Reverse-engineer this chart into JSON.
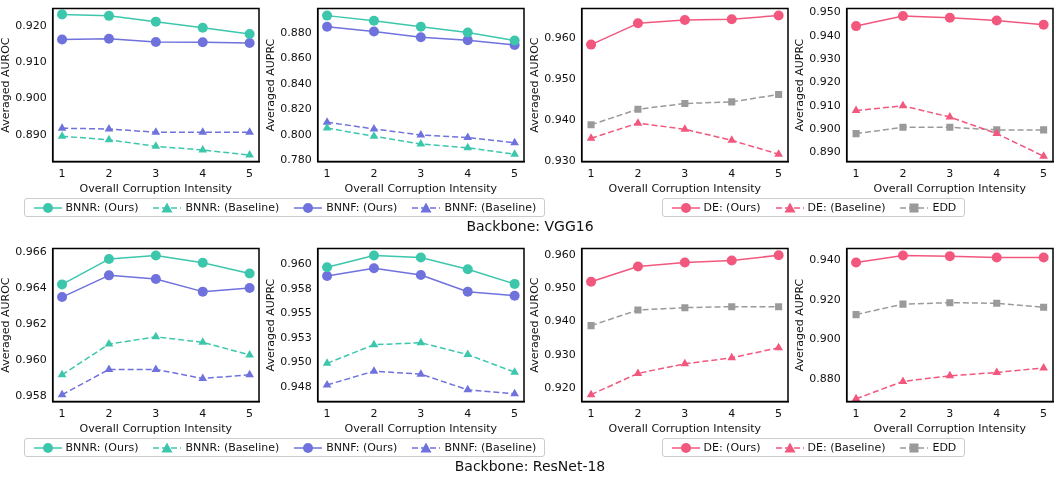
{
  "chart_data": [
    {
      "type": "line",
      "xlabel": "Overall Corruption Intensity",
      "ylabel": "Averaged AUROC",
      "x": [
        1,
        2,
        3,
        4,
        5
      ],
      "xlim": [
        0.8,
        5.2
      ],
      "xticks": [
        1,
        2,
        3,
        4,
        5
      ],
      "ylim": [
        0.8826,
        0.9248
      ],
      "yticks": [
        {
          "value": 0.89,
          "label": "0.890"
        },
        {
          "value": 0.9,
          "label": "0.900"
        },
        {
          "value": 0.91,
          "label": "0.910"
        },
        {
          "value": 0.92,
          "label": "0.920"
        }
      ],
      "grid": false,
      "legend": "bottom",
      "annotations": [
        "Backbone: VGG16"
      ],
      "series": [
        {
          "name": "BNNR: (Ours)",
          "color": "#3cc7ad",
          "marker": "circle",
          "line_style": "solid",
          "values": [
            0.9232,
            0.9228,
            0.9212,
            0.9195,
            0.9178
          ]
        },
        {
          "name": "BNNR: (Baseline)",
          "color": "#3cc7ad",
          "marker": "triangle",
          "line_style": "dashed",
          "values": [
            0.8896,
            0.8886,
            0.8868,
            0.8858,
            0.8844
          ]
        },
        {
          "name": "BNNF: (Ours)",
          "color": "#6f72dc",
          "marker": "circle",
          "line_style": "solid",
          "values": [
            0.9163,
            0.9165,
            0.9156,
            0.9155,
            0.9153
          ]
        },
        {
          "name": "BNNF: (Baseline)",
          "color": "#6f72dc",
          "marker": "triangle",
          "line_style": "dashed",
          "values": [
            0.8918,
            0.8916,
            0.8907,
            0.8907,
            0.8907
          ]
        }
      ]
    },
    {
      "type": "line",
      "xlabel": "Overall Corruption Intensity",
      "ylabel": "Averaged AUPRC",
      "x": [
        1,
        2,
        3,
        4,
        5
      ],
      "xlim": [
        0.8,
        5.2
      ],
      "xticks": [
        1,
        2,
        3,
        4,
        5
      ],
      "ylim": [
        0.7792,
        0.899
      ],
      "yticks": [
        {
          "value": 0.78,
          "label": "0.780"
        },
        {
          "value": 0.8,
          "label": "0.800"
        },
        {
          "value": 0.82,
          "label": "0.820"
        },
        {
          "value": 0.84,
          "label": "0.840"
        },
        {
          "value": 0.86,
          "label": "0.860"
        },
        {
          "value": 0.88,
          "label": "0.880"
        }
      ],
      "grid": false,
      "series": [
        {
          "color": "#3cc7ad",
          "marker": "circle",
          "line_style": "solid",
          "values": [
            0.8935,
            0.8895,
            0.8848,
            0.8803,
            0.874
          ]
        },
        {
          "color": "#3cc7ad",
          "marker": "triangle",
          "line_style": "dashed",
          "values": [
            0.8055,
            0.799,
            0.793,
            0.79,
            0.785
          ]
        },
        {
          "color": "#6f72dc",
          "marker": "circle",
          "line_style": "solid",
          "values": [
            0.8848,
            0.881,
            0.8765,
            0.8743,
            0.8705
          ]
        },
        {
          "color": "#6f72dc",
          "marker": "triangle",
          "line_style": "dashed",
          "values": [
            0.81,
            0.8048,
            0.8,
            0.798,
            0.794
          ]
        }
      ]
    },
    {
      "type": "line",
      "xlabel": "Overall Corruption Intensity",
      "ylabel": "Averaged AUROC",
      "x": [
        1,
        2,
        3,
        4,
        5
      ],
      "xlim": [
        0.8,
        5.2
      ],
      "xticks": [
        1,
        2,
        3,
        4,
        5
      ],
      "ylim": [
        0.9298,
        0.9672
      ],
      "yticks": [
        {
          "value": 0.93,
          "label": "0.930"
        },
        {
          "value": 0.94,
          "label": "0.940"
        },
        {
          "value": 0.95,
          "label": "0.950"
        },
        {
          "value": 0.96,
          "label": "0.960"
        }
      ],
      "grid": false,
      "legend": "bottom",
      "series": [
        {
          "name": "DE: (Ours)",
          "color": "#f2577e",
          "marker": "circle",
          "line_style": "solid",
          "values": [
            0.9584,
            0.9636,
            0.9644,
            0.9646,
            0.9655
          ]
        },
        {
          "name": "DE: (Baseline)",
          "color": "#f2577e",
          "marker": "triangle",
          "line_style": "dashed",
          "values": [
            0.9355,
            0.9392,
            0.9377,
            0.935,
            0.9316
          ]
        },
        {
          "name": "EDD",
          "color": "#9a9a9a",
          "marker": "square",
          "line_style": "dashed",
          "values": [
            0.9388,
            0.9426,
            0.944,
            0.9444,
            0.9462
          ]
        }
      ]
    },
    {
      "type": "line",
      "xlabel": "Overall Corruption Intensity",
      "ylabel": "Averaged AUPRC",
      "x": [
        1,
        2,
        3,
        4,
        5
      ],
      "xlim": [
        0.8,
        5.2
      ],
      "xticks": [
        1,
        2,
        3,
        4,
        5
      ],
      "ylim": [
        0.8861,
        0.9517
      ],
      "yticks": [
        {
          "value": 0.89,
          "label": "0.890"
        },
        {
          "value": 0.9,
          "label": "0.900"
        },
        {
          "value": 0.91,
          "label": "0.910"
        },
        {
          "value": 0.92,
          "label": "0.920"
        },
        {
          "value": 0.93,
          "label": "0.930"
        },
        {
          "value": 0.94,
          "label": "0.940"
        },
        {
          "value": 0.95,
          "label": "0.950"
        }
      ],
      "grid": false,
      "series": [
        {
          "color": "#f2577e",
          "marker": "circle",
          "line_style": "solid",
          "values": [
            0.9442,
            0.9485,
            0.9478,
            0.9466,
            0.9448
          ]
        },
        {
          "color": "#f2577e",
          "marker": "triangle",
          "line_style": "dashed",
          "values": [
            0.908,
            0.91,
            0.9052,
            0.8981,
            0.8884
          ]
        },
        {
          "color": "#9a9a9a",
          "marker": "square",
          "line_style": "dashed",
          "values": [
            0.8981,
            0.9008,
            0.9008,
            0.8997,
            0.8997
          ]
        }
      ]
    },
    {
      "type": "line",
      "xlabel": "Overall Corruption Intensity",
      "ylabel": "Averaged AUROC",
      "x": [
        1,
        2,
        3,
        4,
        5
      ],
      "xlim": [
        0.8,
        5.2
      ],
      "xticks": [
        1,
        2,
        3,
        4,
        5
      ],
      "ylim": [
        0.95772,
        0.96618
      ],
      "yticks": [
        {
          "value": 0.958,
          "label": "0.958"
        },
        {
          "value": 0.96,
          "label": "0.960"
        },
        {
          "value": 0.962,
          "label": "0.962"
        },
        {
          "value": 0.964,
          "label": "0.964"
        },
        {
          "value": 0.966,
          "label": "0.966"
        }
      ],
      "grid": false,
      "legend": "bottom",
      "annotations": [
        "Backbone: ResNet-18"
      ],
      "series": [
        {
          "name": "BNNR: (Ours)",
          "color": "#3cc7ad",
          "marker": "circle",
          "line_style": "solid",
          "values": [
            0.9642,
            0.9656,
            0.9658,
            0.9654,
            0.9648
          ]
        },
        {
          "name": "BNNR: (Baseline)",
          "color": "#3cc7ad",
          "marker": "triangle",
          "line_style": "dashed",
          "values": [
            0.9592,
            0.9609,
            0.9613,
            0.961,
            0.9603
          ]
        },
        {
          "name": "BNNF: (Ours)",
          "color": "#6f72dc",
          "marker": "circle",
          "line_style": "solid",
          "values": [
            0.9635,
            0.9647,
            0.9645,
            0.9638,
            0.964
          ]
        },
        {
          "name": "BNNF: (Baseline)",
          "color": "#6f72dc",
          "marker": "triangle",
          "line_style": "dashed",
          "values": [
            0.9581,
            0.9595,
            0.9595,
            0.959,
            0.9592
          ]
        }
      ]
    },
    {
      "type": "line",
      "xlabel": "Overall Corruption Intensity",
      "ylabel": "Averaged AUPRC",
      "x": [
        1,
        2,
        3,
        4,
        5
      ],
      "xlim": [
        0.8,
        5.2
      ],
      "xticks": [
        1,
        2,
        3,
        4,
        5
      ],
      "ylim": [
        0.946,
        0.9616
      ],
      "yticks": [
        {
          "value": 0.9475,
          "label": "0.948"
        },
        {
          "value": 0.95,
          "label": "0.950"
        },
        {
          "value": 0.9525,
          "label": "0.953"
        },
        {
          "value": 0.955,
          "label": "0.955"
        },
        {
          "value": 0.9575,
          "label": "0.958"
        },
        {
          "value": 0.96,
          "label": "0.960"
        }
      ],
      "grid": false,
      "series": [
        {
          "color": "#3cc7ad",
          "marker": "circle",
          "line_style": "solid",
          "values": [
            0.9597,
            0.9609,
            0.9607,
            0.9595,
            0.958
          ]
        },
        {
          "color": "#3cc7ad",
          "marker": "triangle",
          "line_style": "dashed",
          "values": [
            0.9499,
            0.9518,
            0.952,
            0.9508,
            0.949
          ]
        },
        {
          "color": "#6f72dc",
          "marker": "circle",
          "line_style": "solid",
          "values": [
            0.9588,
            0.9596,
            0.9589,
            0.9572,
            0.9568
          ]
        },
        {
          "color": "#6f72dc",
          "marker": "triangle",
          "line_style": "dashed",
          "values": [
            0.9477,
            0.9491,
            0.9488,
            0.9472,
            0.9468
          ]
        }
      ]
    },
    {
      "type": "line",
      "xlabel": "Overall Corruption Intensity",
      "ylabel": "Averaged AUROC",
      "x": [
        1,
        2,
        3,
        4,
        5
      ],
      "xlim": [
        0.8,
        5.2
      ],
      "xticks": [
        1,
        2,
        3,
        4,
        5
      ],
      "ylim": [
        0.9159,
        0.962
      ],
      "yticks": [
        {
          "value": 0.92,
          "label": "0.920"
        },
        {
          "value": 0.93,
          "label": "0.930"
        },
        {
          "value": 0.94,
          "label": "0.940"
        },
        {
          "value": 0.95,
          "label": "0.950"
        },
        {
          "value": 0.96,
          "label": "0.960"
        }
      ],
      "grid": false,
      "legend": "bottom",
      "series": [
        {
          "name": "DE: (Ours)",
          "color": "#f2577e",
          "marker": "circle",
          "line_style": "solid",
          "values": [
            0.952,
            0.9566,
            0.9578,
            0.9584,
            0.96
          ]
        },
        {
          "name": "DE: (Baseline)",
          "color": "#f2577e",
          "marker": "triangle",
          "line_style": "dashed",
          "values": [
            0.918,
            0.9244,
            0.9273,
            0.9291,
            0.9321
          ]
        },
        {
          "name": "EDD",
          "color": "#9a9a9a",
          "marker": "square",
          "line_style": "dashed",
          "values": [
            0.9388,
            0.9435,
            0.9442,
            0.9445,
            0.9445
          ]
        }
      ]
    },
    {
      "type": "line",
      "xlabel": "Overall Corruption Intensity",
      "ylabel": "Averaged AUPRC",
      "x": [
        1,
        2,
        3,
        4,
        5
      ],
      "xlim": [
        0.8,
        5.2
      ],
      "xticks": [
        1,
        2,
        3,
        4,
        5
      ],
      "ylim": [
        0.8686,
        0.9458
      ],
      "yticks": [
        {
          "value": 0.88,
          "label": "0.880"
        },
        {
          "value": 0.9,
          "label": "0.900"
        },
        {
          "value": 0.92,
          "label": "0.920"
        },
        {
          "value": 0.94,
          "label": "0.940"
        }
      ],
      "grid": false,
      "series": [
        {
          "color": "#f2577e",
          "marker": "circle",
          "line_style": "solid",
          "values": [
            0.9388,
            0.9423,
            0.942,
            0.9413,
            0.9413
          ]
        },
        {
          "color": "#f2577e",
          "marker": "triangle",
          "line_style": "dashed",
          "values": [
            0.87,
            0.8788,
            0.8816,
            0.8833,
            0.8856
          ]
        },
        {
          "color": "#9a9a9a",
          "marker": "square",
          "line_style": "dashed",
          "values": [
            0.9125,
            0.9178,
            0.9185,
            0.9182,
            0.9162
          ]
        }
      ]
    }
  ]
}
